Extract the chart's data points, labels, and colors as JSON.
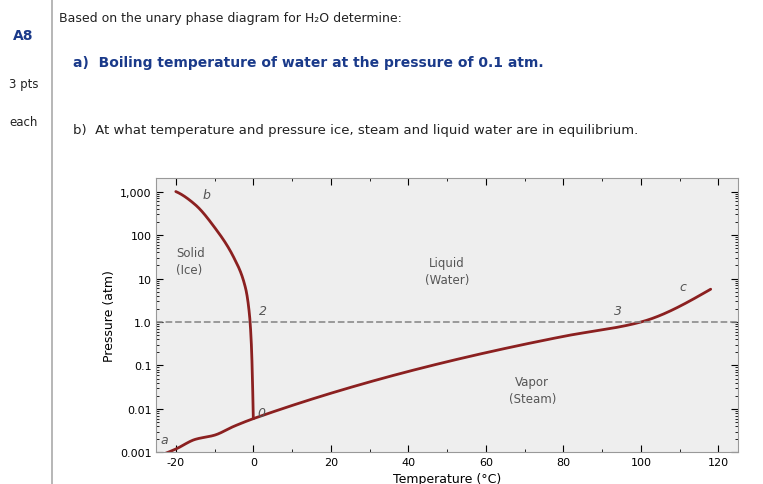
{
  "title_left": "A8",
  "pts_text": "3 pts",
  "each_text": "each",
  "question_text": "Based on the unary phase diagram for H₂O determine:",
  "question_a": "a)  Boiling temperature of water at the pressure of 0.1 atm.",
  "question_b": "b)  At what temperature and pressure ice, steam and liquid water are in equilibrium.",
  "xlabel": "Temperature (°C)",
  "ylabel": "Pressure (atm)",
  "yticks": [
    0.001,
    0.01,
    0.1,
    1.0,
    10,
    100,
    1000
  ],
  "ytick_labels": [
    "0.001",
    "0.01",
    "0.1",
    "1.0",
    "10",
    "100",
    "1,000"
  ],
  "xticks": [
    -20,
    0,
    20,
    40,
    60,
    80,
    100,
    120
  ],
  "dashed_line_y": 1.0,
  "label_solid": "Solid\n(Ice)",
  "label_liquid": "Liquid\n(Water)",
  "label_vapor": "Vapor\n(Steam)",
  "curve_color": "#8B2020",
  "dashed_color": "#888888",
  "bg_color": "#ffffff",
  "plot_bg": "#eeeeee",
  "text_color_blue": "#1a3a8a",
  "text_color_black": "#222222",
  "text_color_gray": "#555555",
  "sep_line_color": "#aaaaaa"
}
